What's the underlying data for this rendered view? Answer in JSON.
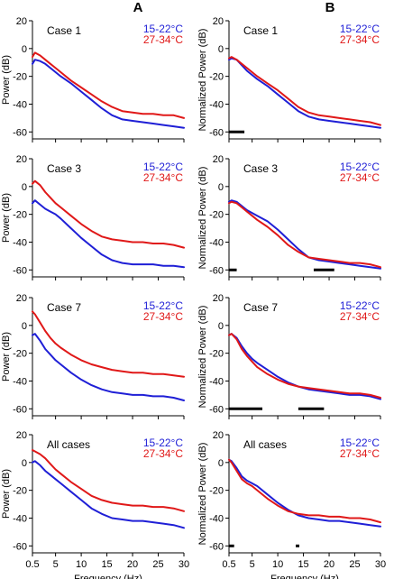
{
  "figure": {
    "column_labels": [
      "A",
      "B"
    ]
  },
  "colors": {
    "cold": "#1f1fd6",
    "warm": "#e01818",
    "axis": "#000000"
  },
  "chart_data": [
    {
      "type": "line",
      "id": "A-case1",
      "label": "Case 1",
      "ylabel": "Power (dB)",
      "xlabel": "",
      "xlim": [
        0.5,
        30
      ],
      "ylim": [
        -65,
        20
      ],
      "yticks": [
        20,
        0,
        -20,
        -40,
        -60
      ],
      "xticks": [],
      "xtick_labels": [],
      "legend": [
        "15-22°C",
        "27-34°C"
      ],
      "legend_position": "top-right",
      "series": [
        {
          "name": "15-22°C",
          "color": "blue",
          "x": [
            0.5,
            1,
            2,
            3,
            4,
            5,
            6,
            8,
            10,
            12,
            14,
            16,
            18,
            20,
            22,
            24,
            26,
            28,
            30
          ],
          "y": [
            -11,
            -8,
            -9,
            -11,
            -14,
            -17,
            -20,
            -25,
            -31,
            -37,
            -43,
            -48,
            -51,
            -52,
            -53,
            -54,
            -55,
            -56,
            -57
          ]
        },
        {
          "name": "27-34°C",
          "color": "red",
          "x": [
            0.5,
            1,
            2,
            3,
            4,
            5,
            6,
            8,
            10,
            12,
            14,
            16,
            18,
            20,
            22,
            24,
            26,
            28,
            30
          ],
          "y": [
            -6,
            -3,
            -5,
            -8,
            -11,
            -14,
            -17,
            -23,
            -28,
            -33,
            -38,
            -42,
            -45,
            -46,
            -47,
            -47,
            -48,
            -48,
            -50
          ]
        }
      ],
      "bars": []
    },
    {
      "type": "line",
      "id": "B-case1",
      "label": "Case 1",
      "ylabel": "Normalized Power (dB)",
      "xlabel": "",
      "xlim": [
        0.5,
        30
      ],
      "ylim": [
        -65,
        20
      ],
      "yticks": [
        20,
        0,
        -20,
        -40,
        -60
      ],
      "xticks": [],
      "xtick_labels": [],
      "legend": [
        "15-22°C",
        "27-34°C"
      ],
      "legend_position": "top-right",
      "series": [
        {
          "name": "15-22°C",
          "color": "blue",
          "x": [
            0.5,
            1,
            2,
            3,
            4,
            5,
            6,
            8,
            10,
            12,
            14,
            16,
            18,
            20,
            22,
            24,
            26,
            28,
            30
          ],
          "y": [
            -8,
            -7,
            -8,
            -12,
            -16,
            -19,
            -22,
            -27,
            -33,
            -39,
            -45,
            -49,
            -51,
            -52,
            -53,
            -54,
            -55,
            -56,
            -57
          ]
        },
        {
          "name": "27-34°C",
          "color": "red",
          "x": [
            0.5,
            1,
            2,
            3,
            4,
            5,
            6,
            8,
            10,
            12,
            14,
            16,
            18,
            20,
            22,
            24,
            26,
            28,
            30
          ],
          "y": [
            -7,
            -6,
            -8,
            -11,
            -14,
            -17,
            -20,
            -25,
            -30,
            -36,
            -42,
            -46,
            -48,
            -49,
            -50,
            -51,
            -52,
            -53,
            -55
          ]
        }
      ],
      "bars": [
        [
          0.5,
          3.5
        ]
      ]
    },
    {
      "type": "line",
      "id": "A-case3",
      "label": "Case 3",
      "ylabel": "Power (dB)",
      "xlabel": "",
      "xlim": [
        0.5,
        30
      ],
      "ylim": [
        -65,
        20
      ],
      "yticks": [
        20,
        0,
        -20,
        -40,
        -60
      ],
      "xticks": [],
      "xtick_labels": [],
      "legend": [
        "15-22°C",
        "27-34°C"
      ],
      "legend_position": "top-right",
      "series": [
        {
          "name": "15-22°C",
          "color": "blue",
          "x": [
            0.5,
            1,
            2,
            3,
            4,
            5,
            6,
            8,
            10,
            12,
            14,
            16,
            18,
            20,
            22,
            24,
            26,
            28,
            30
          ],
          "y": [
            -12,
            -10,
            -13,
            -16,
            -18,
            -20,
            -23,
            -30,
            -37,
            -43,
            -49,
            -53,
            -55,
            -56,
            -56,
            -56,
            -57,
            -57,
            -58
          ]
        },
        {
          "name": "27-34°C",
          "color": "red",
          "x": [
            0.5,
            1,
            2,
            3,
            4,
            5,
            6,
            8,
            10,
            12,
            14,
            16,
            18,
            20,
            22,
            24,
            26,
            28,
            30
          ],
          "y": [
            2,
            4,
            1,
            -4,
            -8,
            -12,
            -15,
            -21,
            -27,
            -32,
            -36,
            -38,
            -39,
            -40,
            -40,
            -41,
            -41,
            -42,
            -44
          ]
        }
      ],
      "bars": []
    },
    {
      "type": "line",
      "id": "B-case3",
      "label": "Case 3",
      "ylabel": "Normalized Power (dB)",
      "xlabel": "",
      "xlim": [
        0.5,
        30
      ],
      "ylim": [
        -65,
        20
      ],
      "yticks": [
        20,
        0,
        -20,
        -40,
        -60
      ],
      "xticks": [],
      "xtick_labels": [],
      "legend": [
        "15-22°C",
        "27-34°C"
      ],
      "legend_position": "top-right",
      "series": [
        {
          "name": "15-22°C",
          "color": "blue",
          "x": [
            0.5,
            1,
            2,
            3,
            4,
            5,
            6,
            8,
            10,
            12,
            14,
            16,
            18,
            20,
            22,
            24,
            26,
            28,
            30
          ],
          "y": [
            -11,
            -10,
            -11,
            -14,
            -17,
            -19,
            -21,
            -25,
            -31,
            -38,
            -45,
            -51,
            -53,
            -54,
            -55,
            -56,
            -57,
            -58,
            -59
          ]
        },
        {
          "name": "27-34°C",
          "color": "red",
          "x": [
            0.5,
            1,
            2,
            3,
            4,
            5,
            6,
            8,
            10,
            12,
            14,
            16,
            18,
            20,
            22,
            24,
            26,
            28,
            30
          ],
          "y": [
            -12,
            -11,
            -12,
            -15,
            -18,
            -21,
            -24,
            -29,
            -35,
            -42,
            -47,
            -51,
            -52,
            -53,
            -54,
            -55,
            -55,
            -56,
            -58
          ]
        }
      ],
      "bars": [
        [
          0.5,
          2
        ],
        [
          17,
          21
        ]
      ]
    },
    {
      "type": "line",
      "id": "A-case7",
      "label": "Case 7",
      "ylabel": "Power (dB)",
      "xlabel": "",
      "xlim": [
        0.5,
        30
      ],
      "ylim": [
        -65,
        20
      ],
      "yticks": [
        20,
        0,
        -20,
        -40,
        -60
      ],
      "xticks": [],
      "xtick_labels": [],
      "legend": [
        "15-22°C",
        "27-34°C"
      ],
      "legend_position": "top-right",
      "series": [
        {
          "name": "15-22°C",
          "color": "blue",
          "x": [
            0.5,
            1,
            2,
            3,
            4,
            5,
            6,
            8,
            10,
            12,
            14,
            16,
            18,
            20,
            22,
            24,
            26,
            28,
            30
          ],
          "y": [
            -7,
            -6,
            -11,
            -17,
            -21,
            -25,
            -28,
            -34,
            -39,
            -43,
            -46,
            -48,
            -49,
            -50,
            -50,
            -51,
            -51,
            -52,
            -54
          ]
        },
        {
          "name": "27-34°C",
          "color": "red",
          "x": [
            0.5,
            1,
            2,
            3,
            4,
            5,
            6,
            8,
            10,
            12,
            14,
            16,
            18,
            20,
            22,
            24,
            26,
            28,
            30
          ],
          "y": [
            10,
            8,
            2,
            -4,
            -9,
            -13,
            -16,
            -21,
            -25,
            -28,
            -30,
            -32,
            -33,
            -34,
            -34,
            -35,
            -35,
            -36,
            -37
          ]
        }
      ],
      "bars": []
    },
    {
      "type": "line",
      "id": "B-case7",
      "label": "Case 7",
      "ylabel": "Normalized Power (dB)",
      "xlabel": "",
      "xlim": [
        0.5,
        30
      ],
      "ylim": [
        -65,
        20
      ],
      "yticks": [
        20,
        0,
        -20,
        -40,
        -60
      ],
      "xticks": [],
      "xtick_labels": [],
      "legend": [
        "15-22°C",
        "27-34°C"
      ],
      "legend_position": "top-right",
      "series": [
        {
          "name": "15-22°C",
          "color": "blue",
          "x": [
            0.5,
            1,
            2,
            3,
            4,
            5,
            6,
            8,
            10,
            12,
            14,
            16,
            18,
            20,
            22,
            24,
            26,
            28,
            30
          ],
          "y": [
            -7,
            -6,
            -9,
            -15,
            -20,
            -24,
            -27,
            -32,
            -37,
            -41,
            -44,
            -46,
            -47,
            -48,
            -49,
            -50,
            -50,
            -51,
            -53
          ]
        },
        {
          "name": "27-34°C",
          "color": "red",
          "x": [
            0.5,
            1,
            2,
            3,
            4,
            5,
            6,
            8,
            10,
            12,
            14,
            16,
            18,
            20,
            22,
            24,
            26,
            28,
            30
          ],
          "y": [
            -7,
            -6,
            -10,
            -17,
            -22,
            -26,
            -30,
            -35,
            -39,
            -42,
            -44,
            -45,
            -46,
            -47,
            -48,
            -49,
            -49,
            -50,
            -52
          ]
        }
      ],
      "bars": [
        [
          0.5,
          7
        ],
        [
          14,
          19
        ]
      ]
    },
    {
      "type": "line",
      "id": "A-all",
      "label": "All cases",
      "ylabel": "Power (dB)",
      "xlabel": "Frequency (Hz)",
      "xlim": [
        0.5,
        30
      ],
      "ylim": [
        -65,
        20
      ],
      "yticks": [
        20,
        0,
        -20,
        -40,
        -60
      ],
      "xticks": [
        0.5,
        5,
        10,
        15,
        20,
        25,
        30
      ],
      "xtick_labels": [
        "0.5",
        "5",
        "10",
        "15",
        "20",
        "25",
        "30"
      ],
      "legend": [
        "15-22°C",
        "27-34°C"
      ],
      "legend_position": "top-right",
      "series": [
        {
          "name": "15-22°C",
          "color": "blue",
          "x": [
            0.5,
            1,
            2,
            3,
            4,
            5,
            6,
            8,
            10,
            12,
            14,
            16,
            18,
            20,
            22,
            24,
            26,
            28,
            30
          ],
          "y": [
            0,
            1,
            -2,
            -6,
            -9,
            -12,
            -15,
            -21,
            -27,
            -33,
            -37,
            -40,
            -41,
            -42,
            -42,
            -43,
            -44,
            -45,
            -47
          ]
        },
        {
          "name": "27-34°C",
          "color": "red",
          "x": [
            0.5,
            1,
            2,
            3,
            4,
            5,
            6,
            8,
            10,
            12,
            14,
            16,
            18,
            20,
            22,
            24,
            26,
            28,
            30
          ],
          "y": [
            9,
            8,
            6,
            3,
            -1,
            -5,
            -8,
            -14,
            -19,
            -24,
            -27,
            -29,
            -30,
            -31,
            -31,
            -32,
            -32,
            -33,
            -35
          ]
        }
      ],
      "bars": []
    },
    {
      "type": "line",
      "id": "B-all",
      "label": "All cases",
      "ylabel": "Normalized Power (dB)",
      "xlabel": "Frequency (Hz)",
      "xlim": [
        0.5,
        30
      ],
      "ylim": [
        -65,
        20
      ],
      "yticks": [
        20,
        0,
        -20,
        -40,
        -60
      ],
      "xticks": [
        0.5,
        5,
        10,
        15,
        20,
        25,
        30
      ],
      "xtick_labels": [
        "0.5",
        "5",
        "10",
        "15",
        "20",
        "25",
        "30"
      ],
      "legend": [
        "15-22°C",
        "27-34°C"
      ],
      "legend_position": "top-right",
      "series": [
        {
          "name": "15-22°C",
          "color": "blue",
          "x": [
            0.5,
            1,
            2,
            3,
            4,
            5,
            6,
            8,
            10,
            12,
            14,
            16,
            18,
            20,
            22,
            24,
            26,
            28,
            30
          ],
          "y": [
            2,
            1,
            -4,
            -10,
            -13,
            -15,
            -17,
            -23,
            -29,
            -34,
            -38,
            -40,
            -41,
            -42,
            -42,
            -43,
            -44,
            -45,
            -46
          ]
        },
        {
          "name": "27-34°C",
          "color": "red",
          "x": [
            0.5,
            1,
            2,
            3,
            4,
            5,
            6,
            8,
            10,
            12,
            14,
            16,
            18,
            20,
            22,
            24,
            26,
            28,
            30
          ],
          "y": [
            2,
            0,
            -6,
            -12,
            -15,
            -17,
            -20,
            -26,
            -31,
            -35,
            -37,
            -38,
            -38,
            -39,
            -39,
            -40,
            -40,
            -41,
            -43
          ]
        }
      ],
      "bars": [
        [
          0.5,
          1.5
        ],
        [
          13.5,
          14.2
        ]
      ]
    }
  ]
}
